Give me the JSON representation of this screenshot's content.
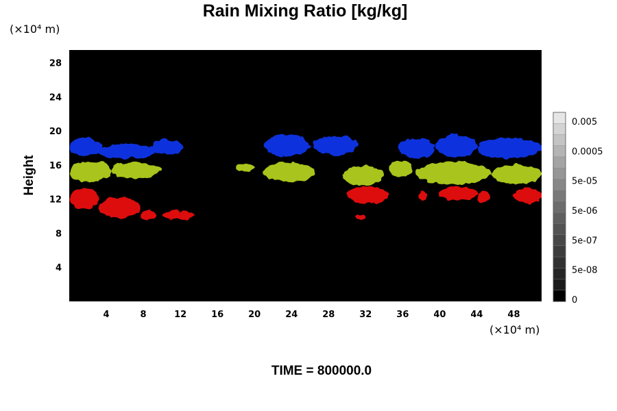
{
  "title": "Rain Mixing Ratio [kg/kg]",
  "y_unit": "(×10⁴ m)",
  "x_unit": "(×10⁴ m)",
  "ylabel": "Height",
  "time_label": "TIME = 800000.0",
  "chart_data": {
    "type": "heatmap",
    "title": "Rain Mixing Ratio [kg/kg]",
    "ylabel": "Height",
    "xlabel": "",
    "xlim": [
      0,
      51
    ],
    "ylim": [
      0,
      29.5
    ],
    "x_ticks": [
      4,
      8,
      12,
      16,
      20,
      24,
      28,
      32,
      36,
      40,
      44,
      48
    ],
    "y_ticks": [
      4,
      8,
      12,
      16,
      20,
      24,
      28
    ],
    "background_color": "#000000",
    "layers": [
      {
        "name": "",
        "color": "#1133dd",
        "y_range": [
          16.6,
          19.6
        ]
      },
      {
        "name": "",
        "color": "#a9c41c",
        "y_range": [
          13.7,
          16.5
        ]
      },
      {
        "name": "",
        "color": "#dd1111",
        "y_range": [
          9.6,
          13.6
        ]
      }
    ],
    "blobs": [
      {
        "layer": 0,
        "x": [
          0.0,
          3.5
        ],
        "y": [
          17.0,
          19.2
        ]
      },
      {
        "layer": 0,
        "x": [
          3.0,
          9.5
        ],
        "y": [
          16.8,
          18.5
        ]
      },
      {
        "layer": 0,
        "x": [
          9.0,
          12.2
        ],
        "y": [
          17.2,
          19.0
        ]
      },
      {
        "layer": 0,
        "x": [
          21.0,
          26.0
        ],
        "y": [
          17.0,
          19.6
        ]
      },
      {
        "layer": 0,
        "x": [
          26.3,
          31.2
        ],
        "y": [
          17.2,
          19.4
        ]
      },
      {
        "layer": 0,
        "x": [
          35.5,
          39.5
        ],
        "y": [
          16.8,
          19.2
        ]
      },
      {
        "layer": 0,
        "x": [
          39.5,
          44.0
        ],
        "y": [
          17.0,
          19.5
        ]
      },
      {
        "layer": 0,
        "x": [
          44.0,
          51.0
        ],
        "y": [
          16.8,
          19.2
        ]
      },
      {
        "layer": 1,
        "x": [
          0.0,
          4.5
        ],
        "y": [
          14.0,
          16.5
        ]
      },
      {
        "layer": 1,
        "x": [
          4.5,
          10.0
        ],
        "y": [
          14.5,
          16.3
        ]
      },
      {
        "layer": 1,
        "x": [
          18.0,
          20.0
        ],
        "y": [
          15.2,
          16.2
        ]
      },
      {
        "layer": 1,
        "x": [
          21.0,
          26.5
        ],
        "y": [
          14.0,
          16.3
        ]
      },
      {
        "layer": 1,
        "x": [
          29.5,
          34.0
        ],
        "y": [
          13.6,
          15.9
        ]
      },
      {
        "layer": 1,
        "x": [
          34.5,
          37.0
        ],
        "y": [
          14.5,
          16.5
        ]
      },
      {
        "layer": 1,
        "x": [
          37.5,
          45.5
        ],
        "y": [
          13.7,
          16.4
        ]
      },
      {
        "layer": 1,
        "x": [
          45.5,
          51.0
        ],
        "y": [
          13.8,
          16.0
        ]
      },
      {
        "layer": 2,
        "x": [
          0.0,
          3.2
        ],
        "y": [
          10.8,
          13.3
        ]
      },
      {
        "layer": 2,
        "x": [
          3.2,
          7.7
        ],
        "y": [
          9.8,
          12.2
        ]
      },
      {
        "layer": 2,
        "x": [
          7.7,
          9.5
        ],
        "y": [
          9.6,
          10.6
        ]
      },
      {
        "layer": 2,
        "x": [
          10.0,
          13.5
        ],
        "y": [
          9.6,
          10.6
        ]
      },
      {
        "layer": 2,
        "x": [
          30.0,
          34.5
        ],
        "y": [
          11.5,
          13.5
        ]
      },
      {
        "layer": 2,
        "x": [
          31.0,
          32.0
        ],
        "y": [
          9.7,
          10.3
        ]
      },
      {
        "layer": 2,
        "x": [
          37.7,
          38.6
        ],
        "y": [
          11.8,
          13.0
        ]
      },
      {
        "layer": 2,
        "x": [
          40.0,
          44.0
        ],
        "y": [
          11.8,
          13.5
        ]
      },
      {
        "layer": 2,
        "x": [
          44.0,
          45.5
        ],
        "y": [
          11.6,
          13.0
        ]
      },
      {
        "layer": 2,
        "x": [
          48.0,
          51.0
        ],
        "y": [
          11.5,
          13.3
        ]
      }
    ],
    "colorbar": {
      "labels": [
        "0.005",
        "0.0005",
        "5e-05",
        "5e-06",
        "5e-07",
        "5e-08",
        "0"
      ],
      "colors": [
        "#e6e6e6",
        "#d4d4d4",
        "#c4c4c4",
        "#b4b4b4",
        "#a4a4a4",
        "#969696",
        "#878787",
        "#797979",
        "#6c6c6c",
        "#5f5f5f",
        "#535353",
        "#474747",
        "#3c3c3c",
        "#313131",
        "#262626",
        "#1a1a1a",
        "#000000"
      ]
    }
  }
}
